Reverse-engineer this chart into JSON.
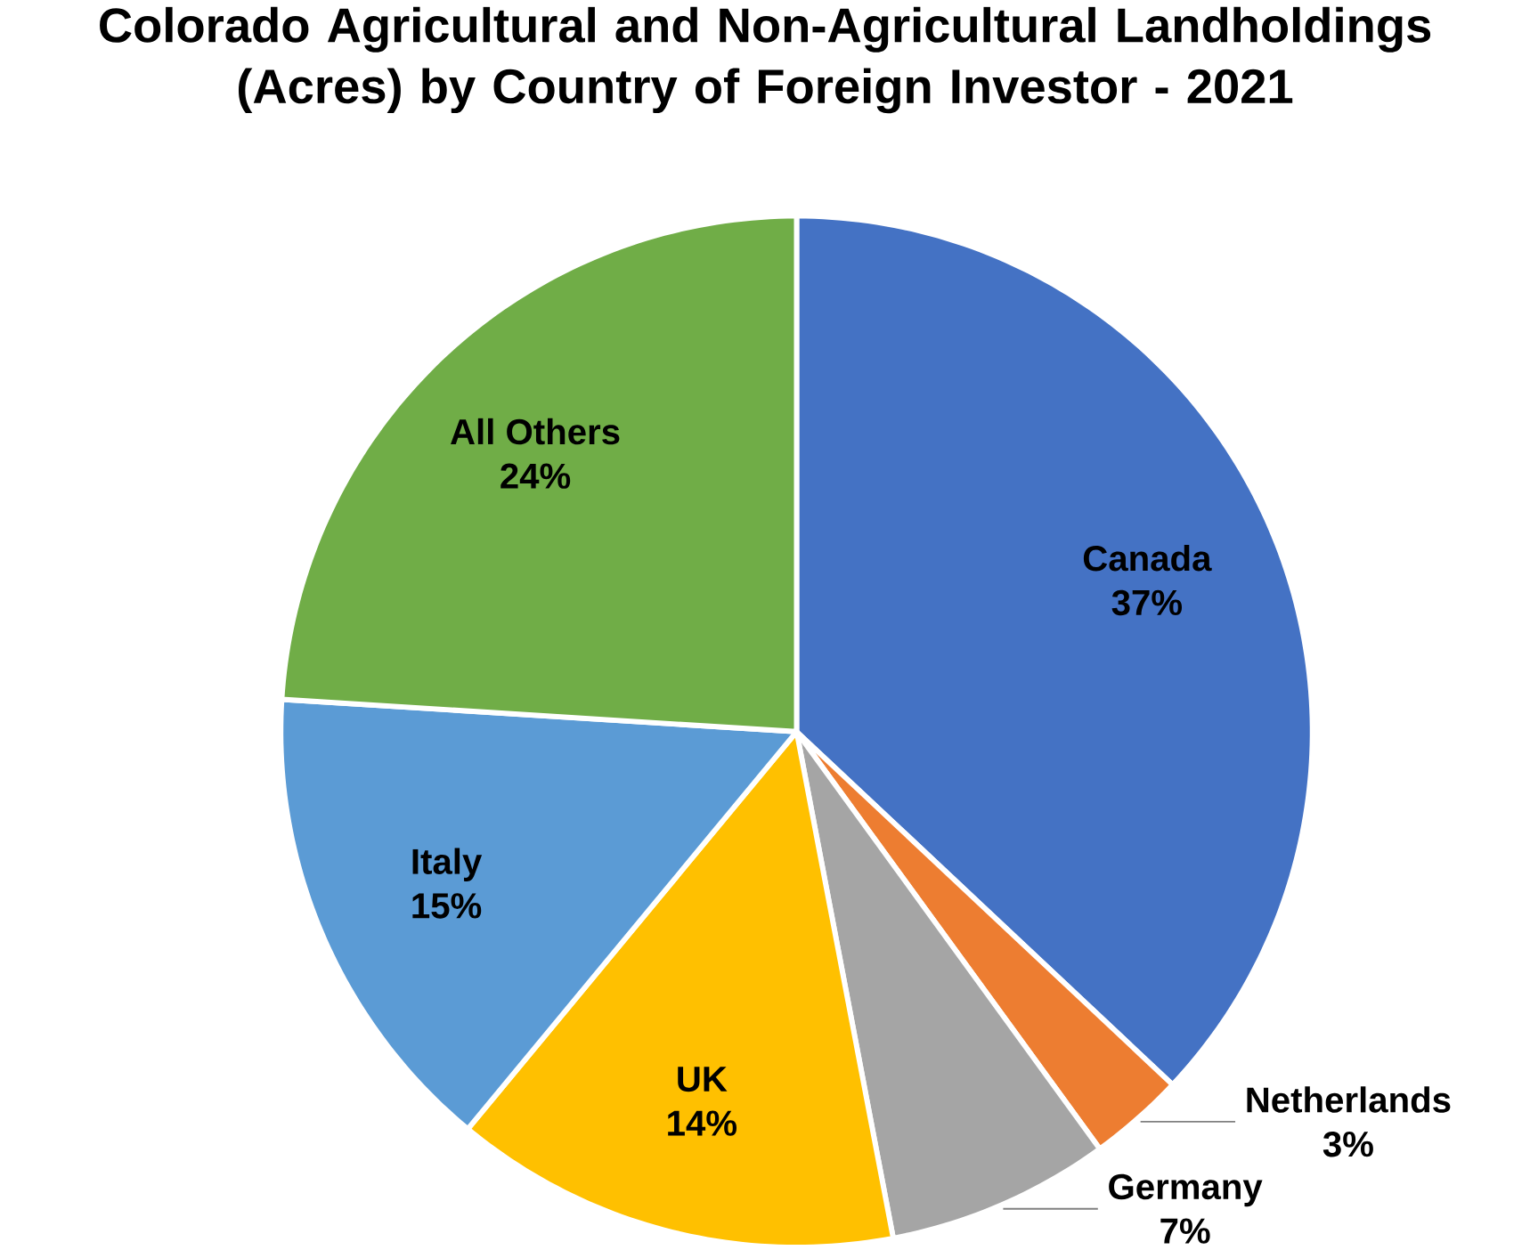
{
  "chart_data": {
    "type": "pie",
    "title": "Colorado Agricultural and Non-Agricultural Landholdings (Acres) by Country of Foreign Investor - 2021",
    "categories": [
      "Canada",
      "Netherlands",
      "Germany",
      "UK",
      "Italy",
      "All Others"
    ],
    "values": [
      37,
      3,
      7,
      14,
      15,
      24
    ],
    "value_labels": [
      "37%",
      "3%",
      "7%",
      "14%",
      "15%",
      "24%"
    ],
    "colors": [
      "#4472c4",
      "#ed7d31",
      "#a5a5a5",
      "#ffc000",
      "#5b9bd5",
      "#70ad47"
    ]
  }
}
